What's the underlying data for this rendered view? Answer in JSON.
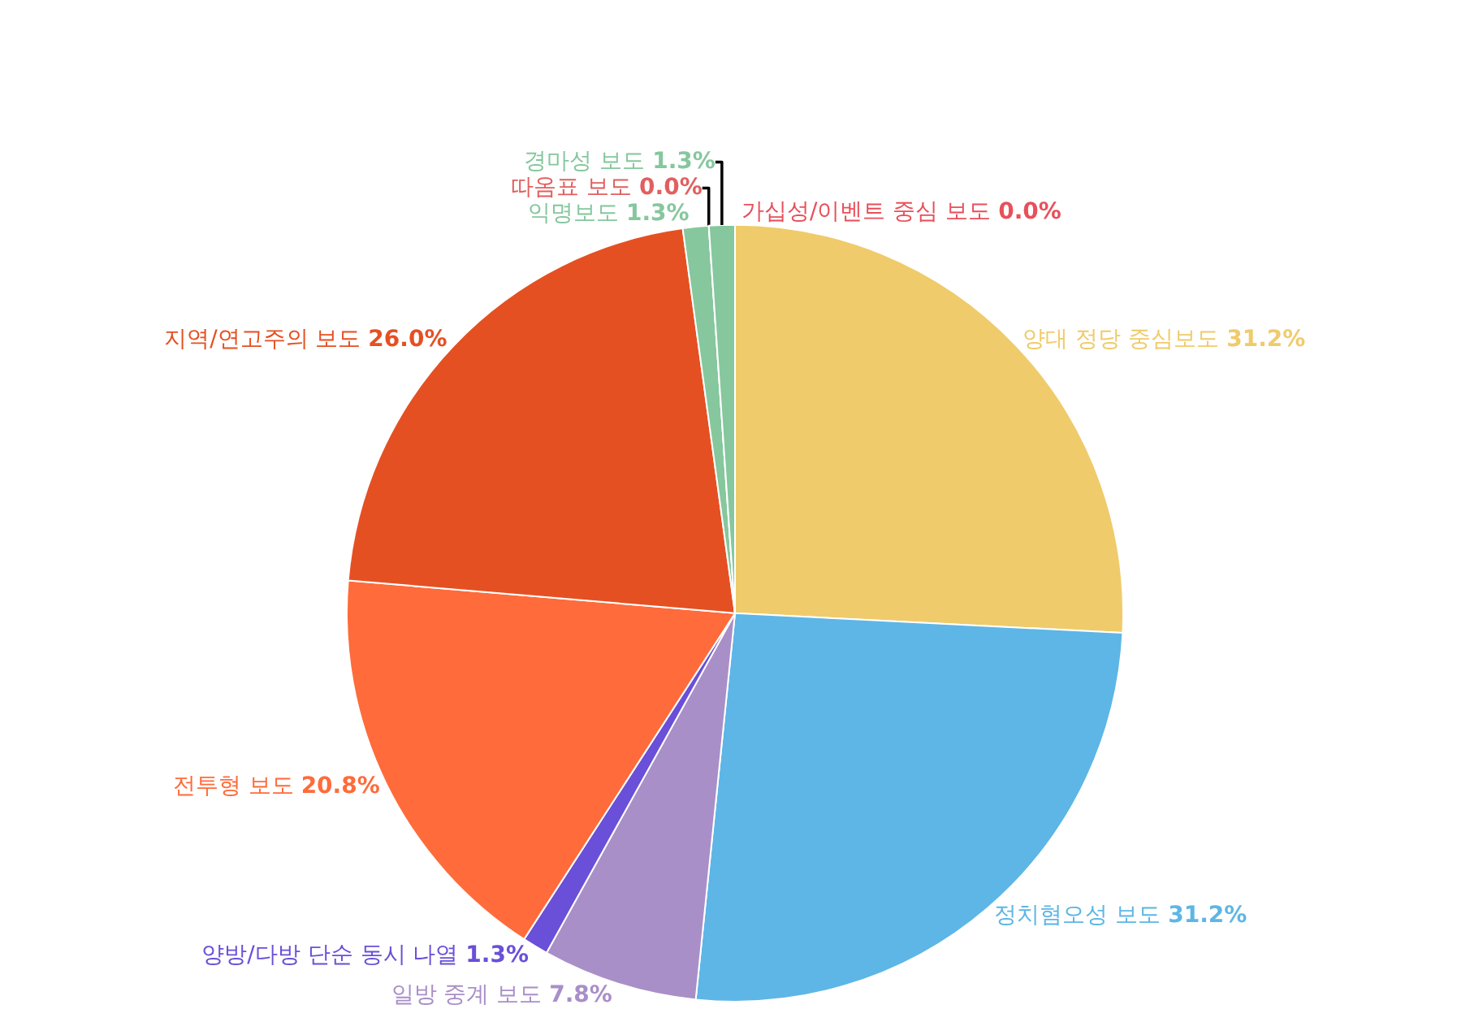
{
  "chart_data": {
    "type": "pie",
    "categories": [
      "가십성/이벤트 중심 보도",
      "양대 정당 중심보도",
      "정치혐오성 보도",
      "일방 중계 보도",
      "양방/다방 단순 동시 나열",
      "전투형 보도",
      "지역/연고주의 보도",
      "익명보도",
      "따옴표 보도",
      "경마성 보도"
    ],
    "values": [
      0.0,
      31.2,
      31.2,
      7.8,
      1.3,
      20.8,
      26.0,
      1.3,
      0.0,
      1.3
    ],
    "value_labels": [
      "0.0%",
      "31.2%",
      "31.2%",
      "7.8%",
      "1.3%",
      "20.8%",
      "26.0%",
      "1.3%",
      "0.0%",
      "1.3%"
    ],
    "colors": [
      "#e8505b",
      "#efcb6b",
      "#5db6e5",
      "#a98fc8",
      "#6a4fd8",
      "#ff6b3a",
      "#e55022",
      "#86c79e",
      "#e25f5f",
      "#86c79e"
    ]
  }
}
